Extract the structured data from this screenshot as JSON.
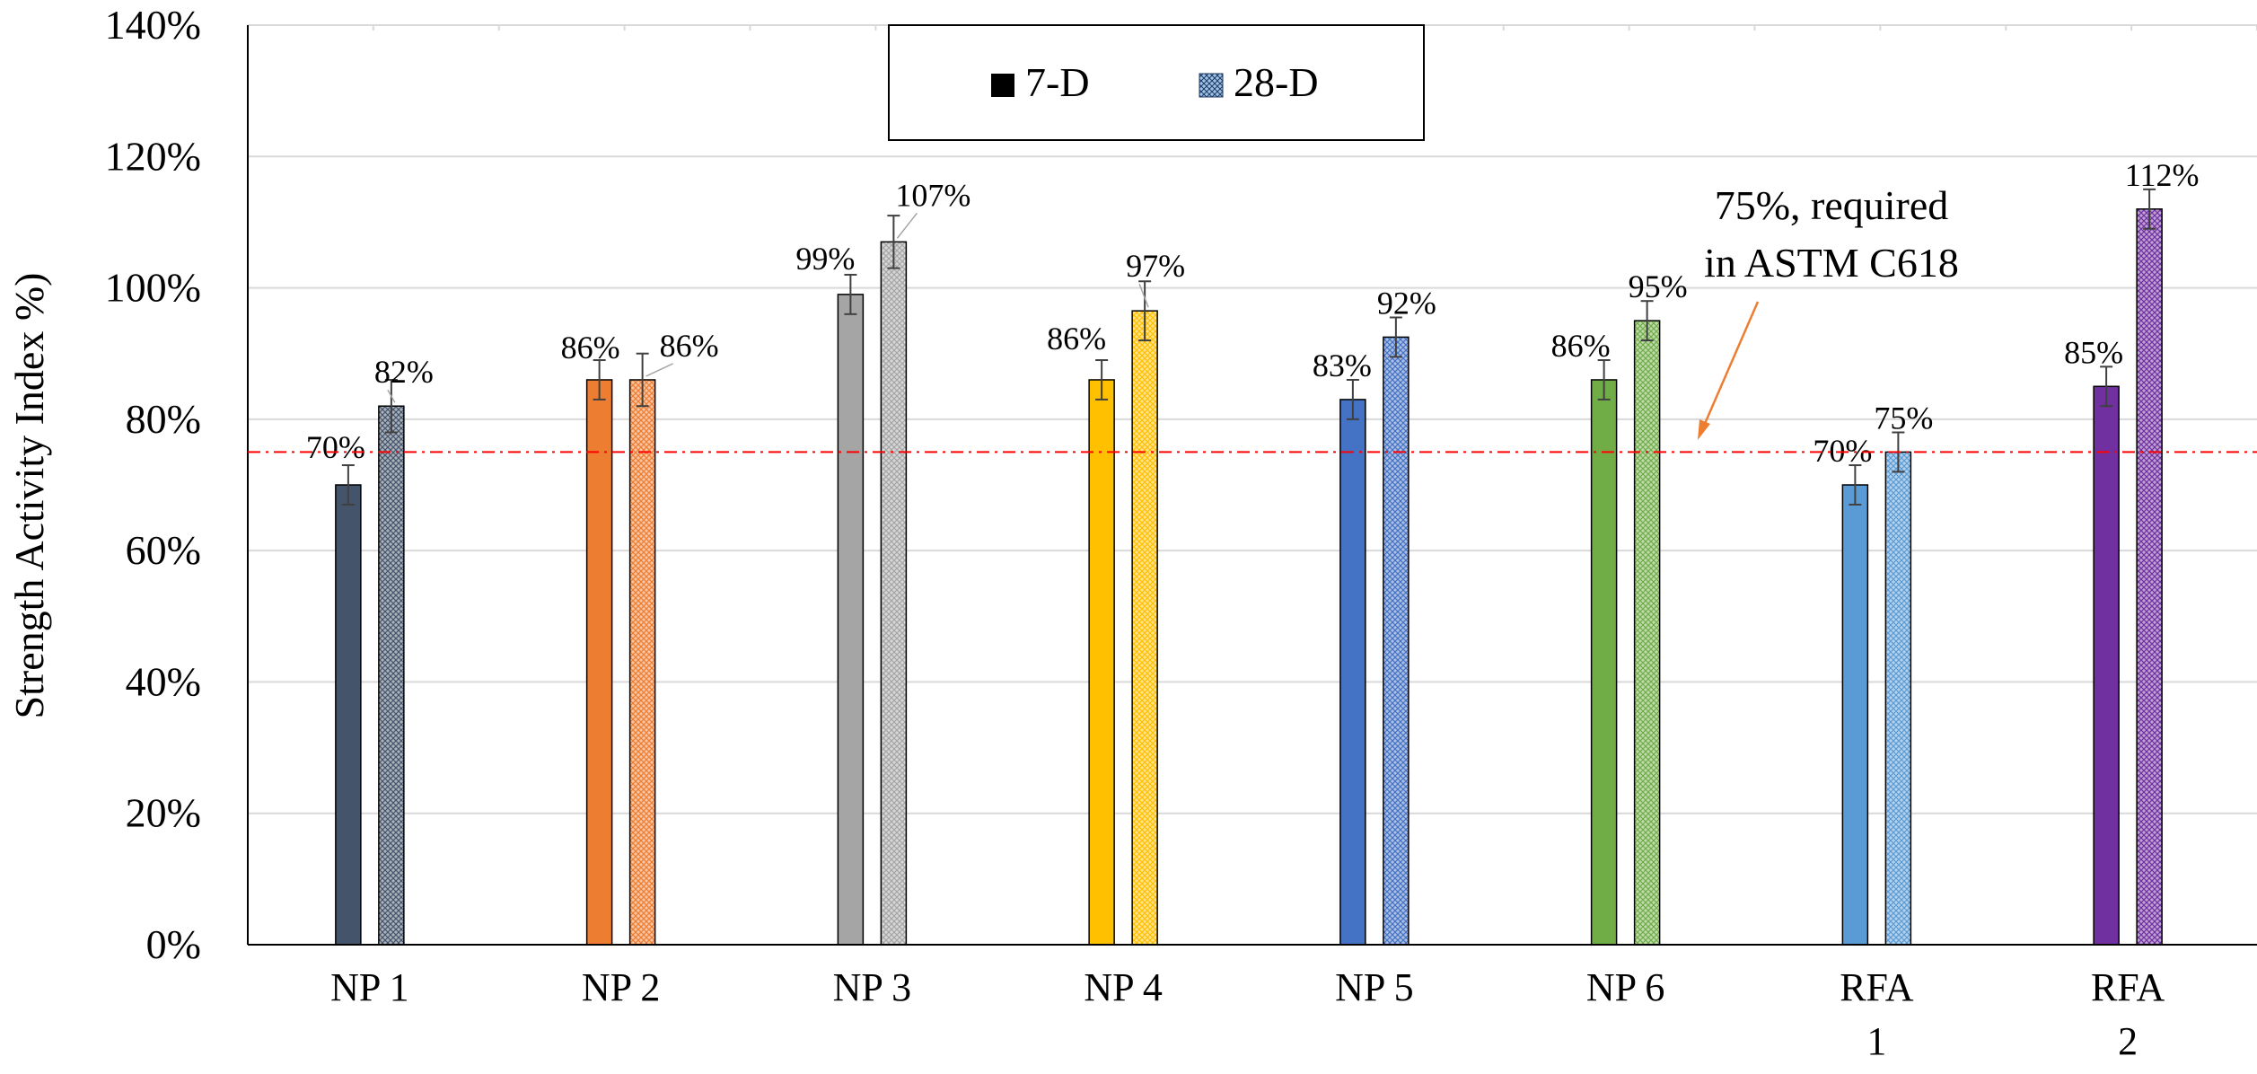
{
  "chart_data": {
    "type": "bar",
    "ylabel": "Strength Activity Index %)",
    "ylim": [
      0,
      140
    ],
    "yticks": [
      "0%",
      "20%",
      "40%",
      "60%",
      "80%",
      "100%",
      "120%",
      "140%"
    ],
    "categories": [
      [
        "NP 1"
      ],
      [
        "NP 2"
      ],
      [
        "NP 3"
      ],
      [
        "NP 4"
      ],
      [
        "NP 5"
      ],
      [
        "NP 6"
      ],
      [
        "RFA",
        "1"
      ],
      [
        "RFA",
        "2"
      ]
    ],
    "series": [
      {
        "name": "7-D",
        "values": [
          70,
          86,
          99,
          86,
          83,
          86,
          70,
          85
        ],
        "labels": [
          "70%",
          "86%",
          "99%",
          "86%",
          "83%",
          "86%",
          "70%",
          "85%"
        ],
        "errors": [
          3,
          3,
          3,
          3,
          3,
          3,
          3,
          3
        ]
      },
      {
        "name": "28-D",
        "values": [
          82,
          86,
          107,
          96.5,
          92.5,
          95,
          75,
          112
        ],
        "labels": [
          "82%",
          "86%",
          "107%",
          "97%",
          "92%",
          "95%",
          "75%",
          "112%"
        ],
        "errors": [
          4,
          4,
          4,
          4.5,
          3,
          3,
          3,
          3
        ]
      }
    ],
    "colors": [
      "#44546A",
      "#ED7D31",
      "#A5A5A5",
      "#FFC000",
      "#4472C4",
      "#70AD47",
      "#5B9BD5",
      "#7030A0"
    ],
    "reference_line": {
      "value": 75,
      "color": "#FF0000",
      "style": "dash-dot"
    },
    "annotation": {
      "lines": [
        "75%, required",
        "in ASTM C618"
      ],
      "arrow_color": "#ED7D31"
    },
    "legend": {
      "position": "top-center"
    },
    "grid": true
  }
}
